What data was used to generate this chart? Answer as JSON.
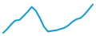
{
  "x": [
    0,
    1,
    2,
    3,
    4,
    5,
    6,
    7,
    8,
    9,
    10,
    11,
    12,
    13,
    14,
    15,
    16,
    17,
    18,
    19,
    20,
    21,
    22
  ],
  "y": [
    1.0,
    2.5,
    4.5,
    6.0,
    6.2,
    7.8,
    9.5,
    11.5,
    10.0,
    7.0,
    3.5,
    1.5,
    1.8,
    2.0,
    2.5,
    3.0,
    4.0,
    5.5,
    6.5,
    7.0,
    8.5,
    10.5,
    12.5
  ],
  "line_color": "#1b9dd4",
  "line_width": 1.5,
  "background_color": "#ffffff",
  "ylim": [
    0,
    14
  ],
  "xlim": [
    -0.3,
    22.3
  ]
}
